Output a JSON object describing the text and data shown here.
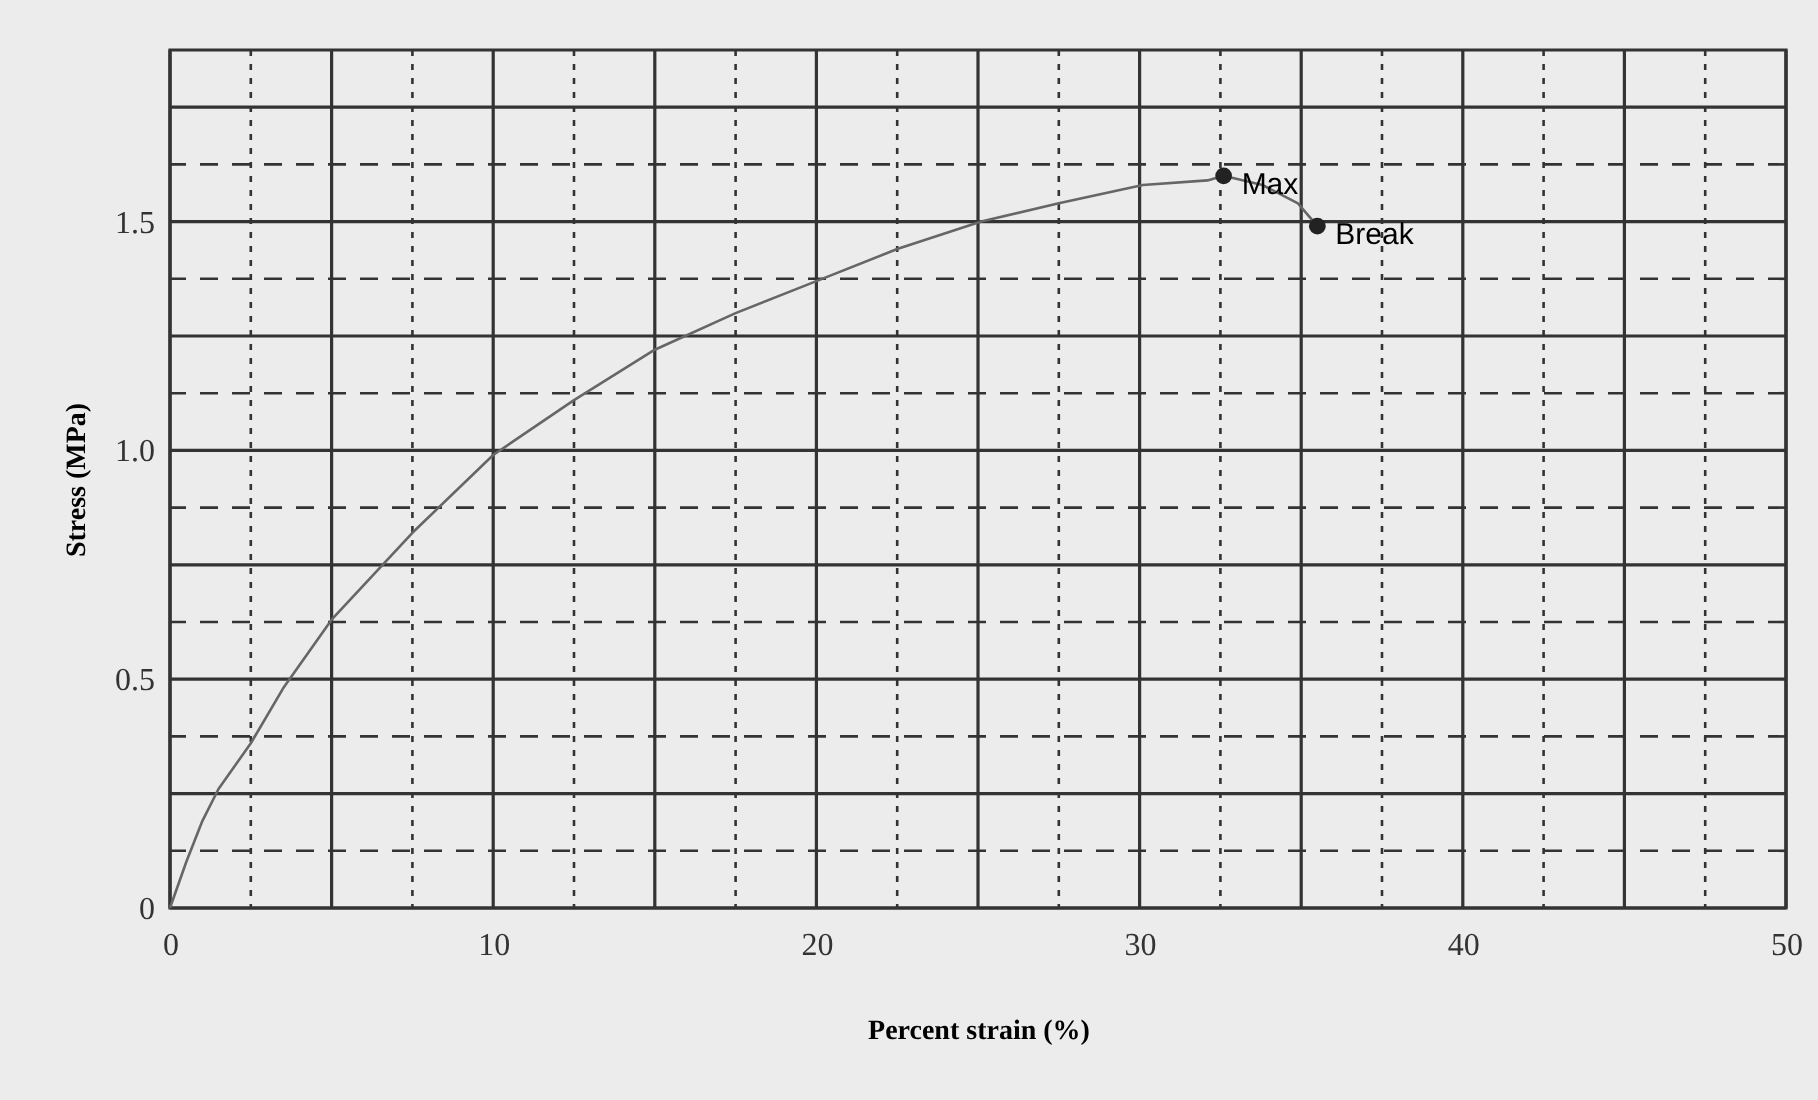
{
  "chart_data": {
    "type": "line",
    "xlabel": "Percent strain (%)",
    "ylabel": "Stress (MPa)",
    "xlim": [
      0,
      50
    ],
    "ylim": [
      0,
      1.875
    ],
    "xticks": [
      0,
      {
        "value": 2.5,
        "label": null
      },
      {
        "value": 5,
        "label": null
      },
      {
        "value": 7.5,
        "label": null
      },
      10,
      {
        "value": 12.5,
        "label": null
      },
      {
        "value": 15,
        "label": null
      },
      {
        "value": 17.5,
        "label": null
      },
      20,
      {
        "value": 22.5,
        "label": null
      },
      {
        "value": 25,
        "label": null
      },
      {
        "value": 27.5,
        "label": null
      },
      30,
      {
        "value": 32.5,
        "label": null
      },
      {
        "value": 35,
        "label": null
      },
      {
        "value": 37.5,
        "label": null
      },
      40,
      {
        "value": 42.5,
        "label": null
      },
      {
        "value": 45,
        "label": null
      },
      {
        "value": 47.5,
        "label": null
      },
      50
    ],
    "yticks": [
      0,
      {
        "value": 0.125,
        "label": null
      },
      {
        "value": 0.25,
        "label": null
      },
      {
        "value": 0.375,
        "label": null
      },
      0.5,
      {
        "value": 0.625,
        "label": null
      },
      {
        "value": 0.75,
        "label": null
      },
      {
        "value": 0.875,
        "label": null
      },
      {
        "value": 1,
        "label": "1.0"
      },
      {
        "value": 1.125,
        "label": null
      },
      {
        "value": 1.25,
        "label": null
      },
      {
        "value": 1.375,
        "label": null
      },
      1.5,
      {
        "value": 1.625,
        "label": null
      },
      {
        "value": 1.75,
        "label": null
      }
    ],
    "grid": true,
    "marker": "none",
    "line_style": "solid",
    "series": [
      {
        "color": "#666666",
        "x": [
          0,
          0.5,
          1,
          1.5,
          2.5,
          3.5,
          5,
          7.5,
          10,
          12.5,
          15,
          17.5,
          20,
          22.5,
          25.1,
          27.5,
          30.1,
          32.1,
          32.6,
          33.8,
          34.9,
          35.5
        ],
        "values": [
          0,
          0.1,
          0.19,
          0.26,
          0.36,
          0.48,
          0.63,
          0.82,
          0.99,
          1.11,
          1.22,
          1.3,
          1.37,
          1.44,
          1.5,
          1.54,
          1.58,
          1.59,
          1.6,
          1.58,
          1.54,
          1.49
        ]
      },
      {
        "type": "scatter",
        "color": "#222222",
        "marker": "circle",
        "x": [
          32.6,
          35.5
        ],
        "values": [
          1.6,
          1.49
        ]
      }
    ],
    "annotations": [
      {
        "text": "Max",
        "x": 32.6,
        "y": 1.6
      },
      {
        "text": "Break",
        "x": 35.5,
        "y": 1.49
      }
    ]
  }
}
